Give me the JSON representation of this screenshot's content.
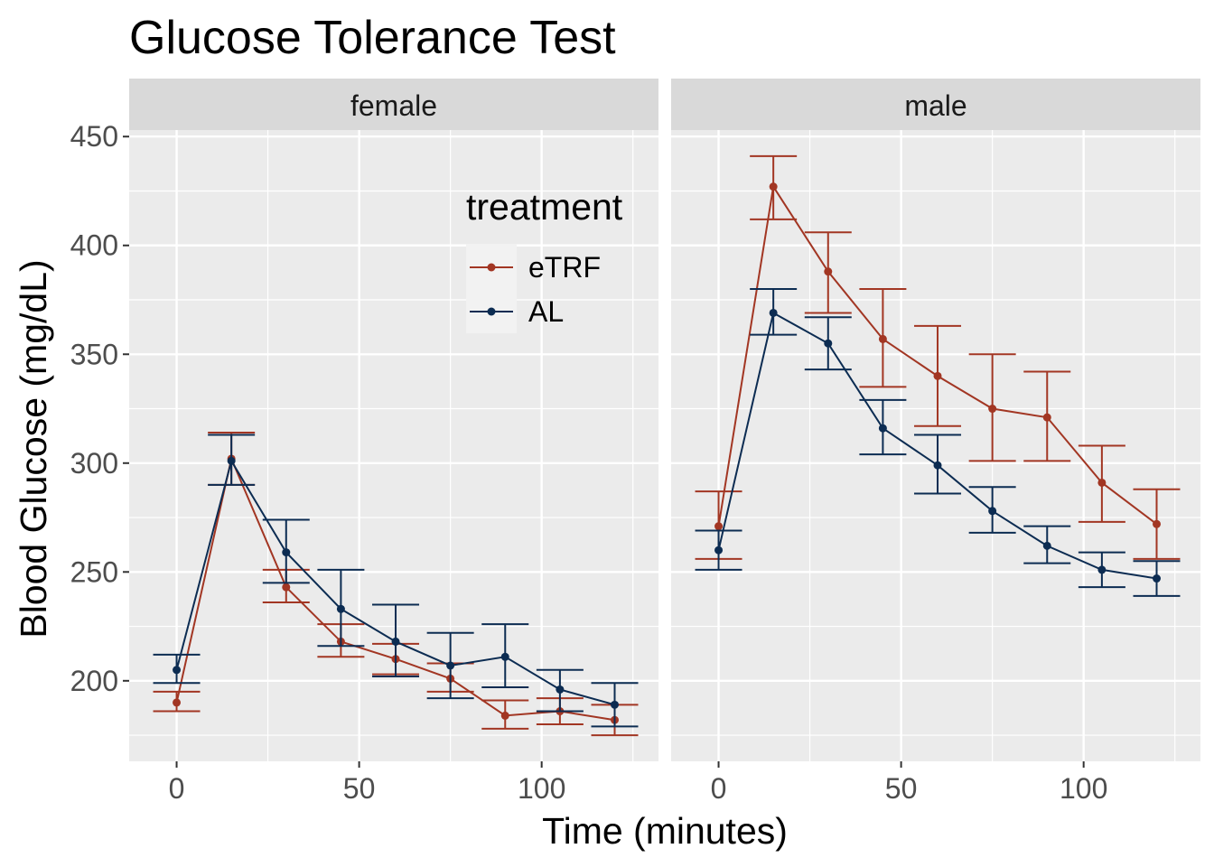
{
  "chart_data": {
    "type": "line",
    "title": "Glucose Tolerance Test",
    "xlabel": "Time (minutes)",
    "ylabel": "Blood Glucose (mg/dL)",
    "xlim": [
      -13,
      132
    ],
    "ylim": [
      163,
      453
    ],
    "x_ticks": [
      0,
      50,
      100
    ],
    "y_ticks": [
      200,
      250,
      300,
      350,
      400,
      450
    ],
    "grid": true,
    "legend": {
      "title": "treatment",
      "position": "top-right of female panel"
    },
    "colors": {
      "eTRF": "#a23623",
      "AL": "#0c2c52"
    },
    "x": [
      0,
      15,
      30,
      45,
      60,
      75,
      90,
      105,
      120
    ],
    "panels": [
      {
        "name": "female",
        "series": [
          {
            "name": "eTRF",
            "mean": [
              190,
              302,
              243,
              218,
              210,
              201,
              184,
              186,
              182
            ],
            "lower": [
              186,
              290,
              236,
              211,
              203,
              195,
              178,
              180,
              175
            ],
            "upper": [
              195,
              314,
              251,
              226,
              217,
              208,
              191,
              192,
              189
            ]
          },
          {
            "name": "AL",
            "mean": [
              205,
              301,
              259,
              233,
              218,
              207,
              211,
              196,
              189
            ],
            "lower": [
              199,
              290,
              245,
              216,
              202,
              192,
              197,
              186,
              179
            ],
            "upper": [
              212,
              313,
              274,
              251,
              235,
              222,
              226,
              205,
              199
            ]
          }
        ]
      },
      {
        "name": "male",
        "series": [
          {
            "name": "eTRF",
            "mean": [
              271,
              427,
              388,
              357,
              340,
              325,
              321,
              291,
              272
            ],
            "lower": [
              256,
              412,
              369,
              335,
              317,
              301,
              301,
              273,
              256
            ],
            "upper": [
              287,
              441,
              406,
              380,
              363,
              350,
              342,
              308,
              288
            ]
          },
          {
            "name": "AL",
            "mean": [
              260,
              369,
              355,
              316,
              299,
              278,
              262,
              251,
              247
            ],
            "lower": [
              251,
              359,
              343,
              304,
              286,
              268,
              254,
              243,
              239
            ],
            "upper": [
              269,
              380,
              367,
              329,
              313,
              289,
              271,
              259,
              255
            ]
          }
        ]
      }
    ]
  }
}
